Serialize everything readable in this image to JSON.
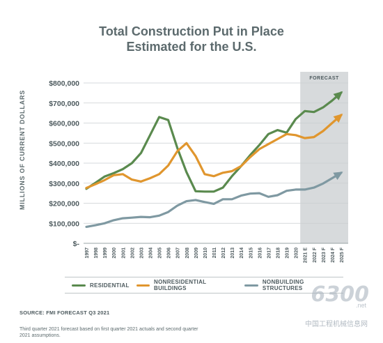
{
  "chart_data": {
    "type": "line",
    "title_line1": "Total Construction Put in Place",
    "title_line2": "Estimated for the U.S.",
    "ylabel": "MILLIONS OF CURRENT DOLLARS",
    "ylim": [
      0,
      800000
    ],
    "yticks": [
      "$-",
      "$100,000",
      "$200,000",
      "$300,000",
      "$400,000",
      "$500,000",
      "$600,000",
      "$700,000",
      "$800,000"
    ],
    "categories": [
      "1997",
      "1998",
      "1999",
      "2000",
      "2001",
      "2002",
      "2003",
      "2004",
      "2005",
      "2006",
      "2007",
      "2008",
      "2009",
      "2010",
      "2011",
      "2012",
      "2013",
      "2014",
      "2015",
      "2016",
      "2017",
      "2018",
      "2019",
      "2020",
      "2021 E",
      "2022 F",
      "2023 F",
      "2024 F",
      "2025 F"
    ],
    "forecast_label": "FORECAST",
    "forecast_start_index": 24,
    "series": [
      {
        "name": "RESIDENTIAL",
        "color": "#5a8a4e",
        "values": [
          272000,
          302000,
          333000,
          350000,
          370000,
          400000,
          450000,
          540000,
          630000,
          615000,
          475000,
          355000,
          260000,
          258000,
          258000,
          278000,
          335000,
          385000,
          440000,
          490000,
          545000,
          565000,
          552000,
          620000,
          660000,
          655000,
          678000,
          712000,
          752000
        ]
      },
      {
        "name": "NONRESIDENTIAL BUILDINGS",
        "color": "#e0962e",
        "values": [
          276000,
          295000,
          315000,
          340000,
          345000,
          318000,
          308000,
          325000,
          345000,
          388000,
          460000,
          500000,
          435000,
          345000,
          335000,
          352000,
          360000,
          385000,
          430000,
          470000,
          495000,
          520000,
          545000,
          540000,
          525000,
          530000,
          560000,
          600000,
          640000
        ]
      },
      {
        "name": "NONBUILDING STRUCTURES",
        "color": "#7f99a2",
        "values": [
          82000,
          90000,
          100000,
          115000,
          125000,
          128000,
          132000,
          130000,
          138000,
          156000,
          188000,
          210000,
          216000,
          206000,
          197000,
          220000,
          220000,
          238000,
          248000,
          250000,
          232000,
          240000,
          262000,
          268000,
          268000,
          278000,
          298000,
          325000,
          352000
        ]
      }
    ]
  },
  "source": "SOURCE: FMI FORECAST Q3 2021",
  "note": "Third quarter 2021 forecast based on first quarter 2021 actuals and second quarter 2021 assumptions.",
  "watermark": {
    "main": "6300",
    "net": ".net",
    "cn": "中国工程机械信息网"
  }
}
